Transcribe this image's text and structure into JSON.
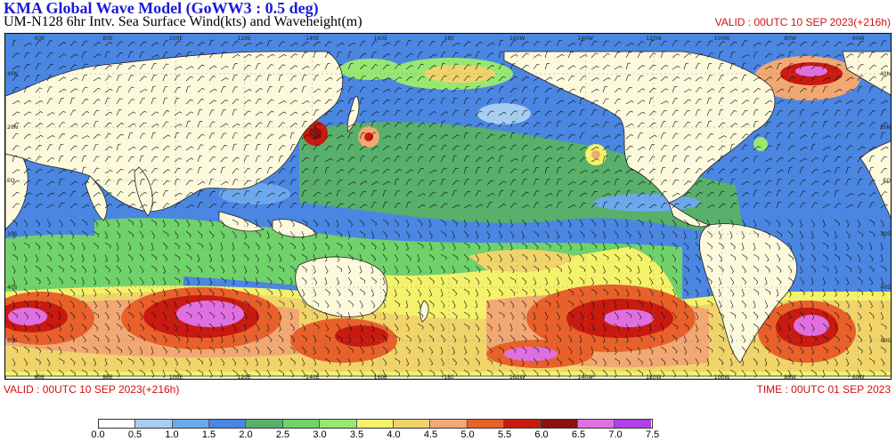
{
  "header": {
    "title": "KMA  Global Wave Model (GoWW3 : 0.5 deg)",
    "subtitle": "UM-N128  6hr Intv. Sea Surface Wind(kts) and Waveheight(m)",
    "valid_top": "VALID : 00UTC 10 SEP 2023(+216h)"
  },
  "footer": {
    "valid": "VALID : 00UTC 10 SEP 2023(+216h)",
    "time": "TIME : 00UTC 01 SEP 2023"
  },
  "colorbar": {
    "labels": [
      "0.0",
      "0.5",
      "1.0",
      "1.5",
      "2.0",
      "2.5",
      "3.0",
      "3.5",
      "4.0",
      "4.5",
      "5.0",
      "5.5",
      "6.0",
      "6.5",
      "7.0",
      "7.5"
    ],
    "colors": [
      "#ffffff",
      "#a8cdf2",
      "#6ea8ec",
      "#4a86e2",
      "#58b06a",
      "#6fd26a",
      "#96e872",
      "#f4f26a",
      "#f0d46a",
      "#f2a872",
      "#e8602a",
      "#c81a10",
      "#8c1010",
      "#e070e0",
      "#b040e8"
    ]
  },
  "map_labels": {
    "top_lon": [
      "60E",
      "80E",
      "100E",
      "120E",
      "140E",
      "160E",
      "180",
      "160W",
      "140W",
      "120W",
      "100W",
      "80W",
      "60W"
    ],
    "bottom_lon": [
      "60E",
      "80E",
      "100E",
      "120E",
      "140E",
      "160E",
      "180",
      "160W",
      "140W",
      "120W",
      "100W",
      "80W",
      "60W"
    ],
    "left_lat": [
      "40N",
      "20N",
      "EQ",
      "20S",
      "40S",
      "60S"
    ],
    "right_lat": [
      "40N",
      "20N",
      "EQ",
      "20S",
      "40S",
      "60S"
    ]
  }
}
